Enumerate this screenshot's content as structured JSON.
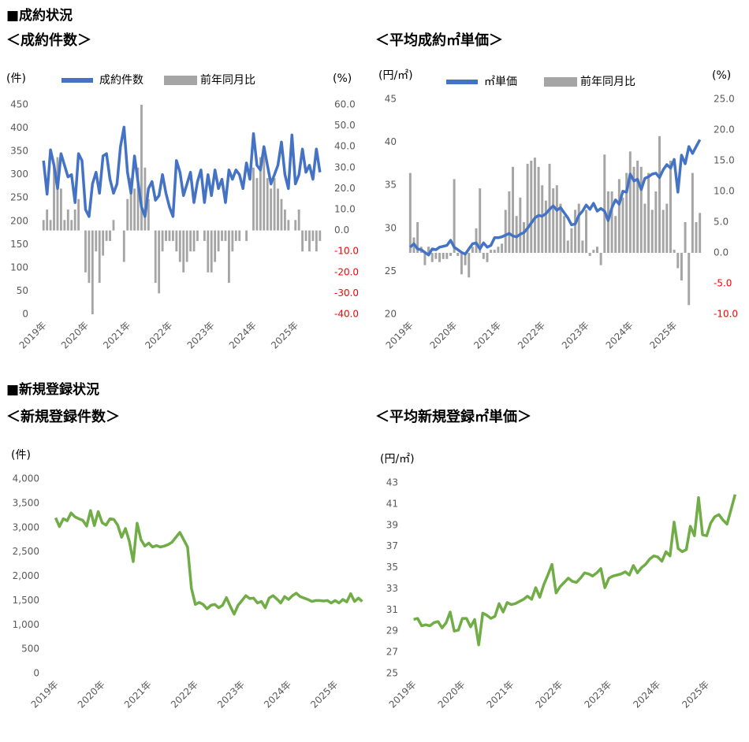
{
  "sections": [
    "■成約状況",
    "■新規登録状況"
  ],
  "chart_data": [
    {
      "type": "combo",
      "title": "＜成約件数＞",
      "ylabel": "(件)",
      "y2label": "(%)",
      "legend": true,
      "categories": [
        "2019年",
        null,
        null,
        null,
        null,
        null,
        null,
        null,
        null,
        null,
        null,
        null,
        "2020年",
        null,
        null,
        null,
        null,
        null,
        null,
        null,
        null,
        null,
        null,
        null,
        "2021年",
        null,
        null,
        null,
        null,
        null,
        null,
        null,
        null,
        null,
        null,
        null,
        "2022年",
        null,
        null,
        null,
        null,
        null,
        null,
        null,
        null,
        null,
        null,
        null,
        "2023年",
        null,
        null,
        null,
        null,
        null,
        null,
        null,
        null,
        null,
        null,
        null,
        "2024年",
        null,
        null,
        null,
        null,
        null,
        null,
        null,
        null,
        null,
        null,
        null,
        "2025年",
        null,
        null,
        null,
        null,
        null,
        null,
        null
      ],
      "series": [
        {
          "name": "前年同月比",
          "type": "bar",
          "axis": "y2",
          "color": "#a5a5a5",
          "values": [
            5,
            10,
            5,
            30,
            35,
            20,
            5,
            10,
            5,
            10,
            15,
            0,
            -20,
            -25,
            -40,
            -10,
            -25,
            -12,
            -5,
            -5,
            5,
            0,
            0,
            -15,
            15,
            25,
            20,
            30,
            60,
            30,
            15,
            0,
            -25,
            -30,
            -10,
            -5,
            -5,
            -5,
            -10,
            -15,
            -20,
            -15,
            -10,
            -10,
            -5,
            0,
            -5,
            -20,
            -20,
            -15,
            -10,
            -5,
            -5,
            -25,
            -10,
            -5,
            -5,
            0,
            -5,
            0,
            30,
            25,
            35,
            40,
            25,
            20,
            25,
            20,
            15,
            10,
            5,
            0,
            5,
            10,
            -10,
            -5,
            -10,
            -5,
            -10,
            -5
          ]
        },
        {
          "name": "成約件数",
          "type": "line",
          "axis": "y",
          "color": "#4472c4",
          "values": [
            330,
            258,
            353,
            320,
            270,
            345,
            320,
            295,
            300,
            240,
            345,
            330,
            225,
            210,
            280,
            305,
            260,
            340,
            345,
            290,
            260,
            280,
            360,
            402,
            305,
            260,
            340,
            285,
            230,
            210,
            270,
            285,
            245,
            255,
            300,
            260,
            230,
            210,
            330,
            305,
            255,
            280,
            305,
            240,
            285,
            310,
            240,
            300,
            255,
            310,
            270,
            290,
            240,
            310,
            290,
            310,
            300,
            270,
            325,
            290,
            388,
            320,
            310,
            360,
            320,
            280,
            300,
            320,
            370,
            300,
            270,
            385,
            280,
            300,
            355,
            305,
            320,
            290,
            355,
            305
          ]
        }
      ],
      "ylim": [
        0,
        450
      ],
      "yticks": [
        0,
        50,
        100,
        150,
        200,
        250,
        300,
        350,
        400,
        450
      ],
      "y2lim": [
        -40,
        60
      ],
      "y2ticks": [
        {
          "value": 60,
          "label": "60.0"
        },
        {
          "value": 50,
          "label": "50.0"
        },
        {
          "value": 40,
          "label": "40.0"
        },
        {
          "value": 30,
          "label": "30.0"
        },
        {
          "value": 20,
          "label": "20.0"
        },
        {
          "value": 10,
          "label": "10.0"
        },
        {
          "value": 0,
          "label": "0.0"
        },
        {
          "value": -10,
          "label": "-10.0"
        },
        {
          "value": -20,
          "label": "-20.0"
        },
        {
          "value": -30,
          "label": "-30.0"
        },
        {
          "value": -40,
          "label": "-40.0"
        }
      ],
      "y2tick_negative_color": "#ff0000"
    },
    {
      "type": "combo",
      "title": "＜平均成約㎡単価＞",
      "ylabel": "(円/㎡)",
      "y2label": "(%)",
      "legend": true,
      "categories": [
        "2019年",
        null,
        null,
        null,
        null,
        null,
        null,
        null,
        null,
        null,
        null,
        null,
        "2020年",
        null,
        null,
        null,
        null,
        null,
        null,
        null,
        null,
        null,
        null,
        null,
        "2021年",
        null,
        null,
        null,
        null,
        null,
        null,
        null,
        null,
        null,
        null,
        null,
        "2022年",
        null,
        null,
        null,
        null,
        null,
        null,
        null,
        null,
        null,
        null,
        null,
        "2023年",
        null,
        null,
        null,
        null,
        null,
        null,
        null,
        null,
        null,
        null,
        null,
        "2024年",
        null,
        null,
        null,
        null,
        null,
        null,
        null,
        null,
        null,
        null,
        null,
        "2025年",
        null,
        null,
        null,
        null,
        null,
        null,
        null
      ],
      "series": [
        {
          "name": "前年同月比",
          "type": "bar",
          "axis": "y2",
          "color": "#a5a5a5",
          "values": [
            13,
            2.5,
            5,
            1,
            -2,
            1,
            -1.5,
            -1,
            -1.5,
            -1,
            -1,
            -0.5,
            12,
            -0.5,
            -3.5,
            -2,
            -4,
            1,
            4,
            10.5,
            -1,
            -1.5,
            0.5,
            0.5,
            1,
            1.5,
            7,
            10,
            14,
            6,
            9,
            5,
            14.5,
            15,
            15.5,
            14,
            11,
            8.5,
            14.5,
            10.5,
            11,
            8,
            6,
            2,
            4,
            7,
            8,
            2,
            7,
            -0.5,
            0.5,
            1,
            -2,
            16,
            10,
            10,
            6,
            12,
            9,
            13,
            16.5,
            14,
            15,
            14,
            8,
            13,
            7,
            10,
            19,
            7,
            8,
            15,
            0.5,
            -2.5,
            -4.5,
            5,
            -8.5,
            13,
            5,
            6.5
          ]
        },
        {
          "name": "㎡単価",
          "type": "line",
          "axis": "y",
          "color": "#4472c4",
          "values": [
            27.8,
            28.2,
            27.6,
            27.5,
            27.2,
            26.9,
            27.6,
            27.5,
            27.8,
            27.9,
            28,
            28.6,
            27.8,
            27.5,
            27.2,
            27,
            27.6,
            28.2,
            28.3,
            27.6,
            28.3,
            27.8,
            28,
            28.9,
            28.9,
            29,
            29.2,
            29.4,
            29.1,
            29,
            29.3,
            29.5,
            30,
            30.6,
            31.2,
            31.5,
            31.4,
            31.7,
            32.2,
            32.6,
            32.1,
            32.4,
            31.8,
            31.2,
            30.4,
            30.5,
            31.5,
            32,
            32.7,
            32.2,
            32.9,
            32,
            32.3,
            32,
            30.9,
            32.4,
            33.3,
            32.8,
            34.3,
            34.2,
            36.3,
            35.5,
            35.7,
            34.5,
            35.8,
            36,
            36.3,
            36.4,
            35.9,
            36.8,
            37.4,
            37,
            38,
            34.2,
            38.5,
            37.5,
            39.5,
            38.7,
            39.5,
            40.3
          ]
        }
      ],
      "ylim": [
        20,
        45
      ],
      "yticks": [
        20,
        25,
        30,
        35,
        40,
        45
      ],
      "y2lim": [
        -10,
        25
      ],
      "y2ticks": [
        {
          "value": 25,
          "label": "25.0"
        },
        {
          "value": 20,
          "label": "20.0"
        },
        {
          "value": 15,
          "label": "15.0"
        },
        {
          "value": 10,
          "label": "10.0"
        },
        {
          "value": 5,
          "label": "5.0"
        },
        {
          "value": 0,
          "label": "0.0"
        },
        {
          "value": -5,
          "label": "-5.0"
        },
        {
          "value": -10,
          "label": "-10.0"
        }
      ],
      "y2tick_negative_color": "#ff0000"
    },
    {
      "type": "line",
      "title": "＜新規登録件数＞",
      "ylabel": "(件)",
      "color": "#70ad47",
      "categories": [
        "2019年",
        null,
        null,
        null,
        null,
        null,
        null,
        null,
        null,
        null,
        null,
        null,
        "2020年",
        null,
        null,
        null,
        null,
        null,
        null,
        null,
        null,
        null,
        null,
        null,
        "2021年",
        null,
        null,
        null,
        null,
        null,
        null,
        null,
        null,
        null,
        null,
        null,
        "2022年",
        null,
        null,
        null,
        null,
        null,
        null,
        null,
        null,
        null,
        null,
        null,
        "2023年",
        null,
        null,
        null,
        null,
        null,
        null,
        null,
        null,
        null,
        null,
        null,
        "2024年",
        null,
        null,
        null,
        null,
        null,
        null,
        null,
        null,
        null,
        null,
        null,
        "2025年",
        null,
        null,
        null,
        null,
        null,
        null,
        null
      ],
      "values": [
        3200,
        3020,
        3180,
        3140,
        3300,
        3220,
        3180,
        3150,
        3030,
        3350,
        3040,
        3330,
        3100,
        3050,
        3180,
        3170,
        3050,
        2800,
        2980,
        2720,
        2300,
        3090,
        2750,
        2620,
        2680,
        2600,
        2630,
        2600,
        2620,
        2650,
        2700,
        2800,
        2900,
        2750,
        2600,
        1750,
        1420,
        1460,
        1420,
        1330,
        1400,
        1420,
        1350,
        1400,
        1560,
        1380,
        1220,
        1400,
        1500,
        1600,
        1540,
        1550,
        1450,
        1480,
        1350,
        1550,
        1600,
        1530,
        1450,
        1580,
        1520,
        1600,
        1650,
        1580,
        1550,
        1520,
        1480,
        1500,
        1500,
        1490,
        1500,
        1450,
        1500,
        1450,
        1520,
        1470,
        1640,
        1480,
        1550,
        1480
      ],
      "ylim": [
        0,
        4000
      ],
      "yticks": [
        0,
        500,
        {
          "value": 1000,
          "label": "1,000"
        },
        {
          "value": 1500,
          "label": "1,500"
        },
        {
          "value": 2000,
          "label": "2,000"
        },
        {
          "value": 2500,
          "label": "2,500"
        },
        {
          "value": 3000,
          "label": "3,000"
        },
        {
          "value": 3500,
          "label": "3,500"
        },
        {
          "value": 4000,
          "label": "4,000"
        }
      ]
    },
    {
      "type": "line",
      "title": "＜平均新規登録㎡単価＞",
      "ylabel": "(円/㎡)",
      "color": "#70ad47",
      "categories": [
        "2019年",
        null,
        null,
        null,
        null,
        null,
        null,
        null,
        null,
        null,
        null,
        null,
        "2020年",
        null,
        null,
        null,
        null,
        null,
        null,
        null,
        null,
        null,
        null,
        null,
        "2021年",
        null,
        null,
        null,
        null,
        null,
        null,
        null,
        null,
        null,
        null,
        null,
        "2022年",
        null,
        null,
        null,
        null,
        null,
        null,
        null,
        null,
        null,
        null,
        null,
        "2023年",
        null,
        null,
        null,
        null,
        null,
        null,
        null,
        null,
        null,
        null,
        null,
        "2024年",
        null,
        null,
        null,
        null,
        null,
        null,
        null,
        null,
        null,
        null,
        null,
        "2025年",
        null,
        null,
        null,
        null,
        null,
        null,
        null
      ],
      "values": [
        30.1,
        30.2,
        29.5,
        29.6,
        29.5,
        29.8,
        29.9,
        29.3,
        29.8,
        30.8,
        29,
        29.1,
        30.2,
        30.2,
        29.4,
        30.1,
        27.7,
        30.7,
        30.5,
        30.2,
        30.4,
        31.6,
        30.8,
        31.7,
        31.5,
        31.6,
        31.8,
        32,
        32.3,
        32,
        33.1,
        32.2,
        33.4,
        34.3,
        35.3,
        32.6,
        33.2,
        33.6,
        34,
        33.7,
        33.6,
        34,
        34.5,
        34.4,
        34.2,
        34.5,
        34.9,
        33.1,
        34,
        34.2,
        34.3,
        34.4,
        34.6,
        34.3,
        35.2,
        34.5,
        35,
        35.3,
        35.8,
        36.1,
        36,
        35.6,
        36.5,
        36.1,
        39.3,
        36.8,
        36.5,
        36.7,
        38.9,
        38,
        41.6,
        38.1,
        38,
        39.2,
        39.8,
        40,
        39.5,
        39.1,
        40.5,
        41.9
      ],
      "ylim": [
        25,
        43
      ],
      "yticks": [
        25,
        27,
        29,
        31,
        33,
        35,
        37,
        39,
        41,
        43
      ]
    }
  ]
}
